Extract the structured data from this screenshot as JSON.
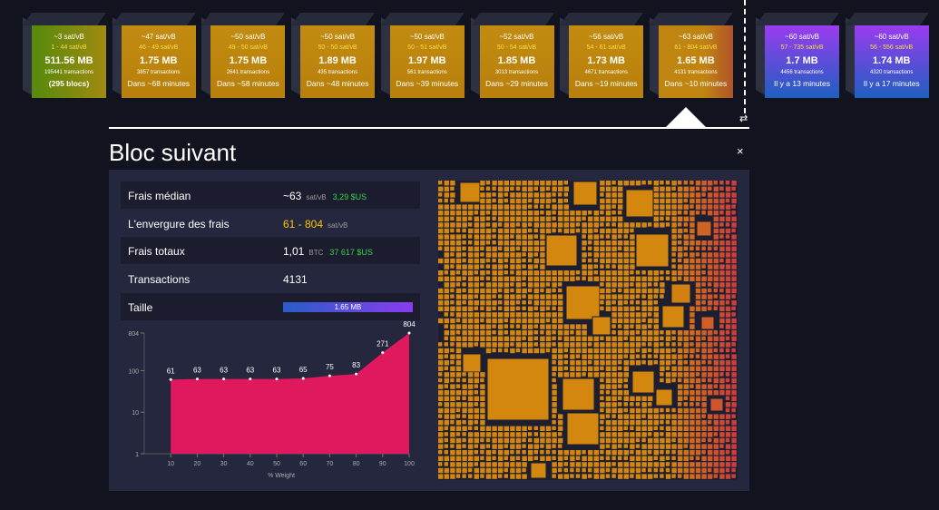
{
  "mempool_blocks": [
    {
      "median_fee": "~3 sat/vB",
      "fee_range": "1 - 44 sat/vB",
      "size": "511.56 MB",
      "transactions": "195441 transactions",
      "eta": "(295 blocs)"
    },
    {
      "median_fee": "~47 sat/vB",
      "fee_range": "46 - 49 sat/vB",
      "size": "1.75 MB",
      "transactions": "3857 transactions",
      "eta": "Dans ~68 minutes"
    },
    {
      "median_fee": "~50 sat/vB",
      "fee_range": "49 - 50 sat/vB",
      "size": "1.75 MB",
      "transactions": "2641 transactions",
      "eta": "Dans ~58 minutes"
    },
    {
      "median_fee": "~50 sat/vB",
      "fee_range": "50 - 50 sat/vB",
      "size": "1.89 MB",
      "transactions": "435 transactions",
      "eta": "Dans ~48 minutes"
    },
    {
      "median_fee": "~50 sat/vB",
      "fee_range": "50 - 51 sat/vB",
      "size": "1.97 MB",
      "transactions": "561 transactions",
      "eta": "Dans ~39 minutes"
    },
    {
      "median_fee": "~52 sat/vB",
      "fee_range": "50 - 54 sat/vB",
      "size": "1.85 MB",
      "transactions": "3013 transactions",
      "eta": "Dans ~29 minutes"
    },
    {
      "median_fee": "~56 sat/vB",
      "fee_range": "54 - 61 sat/vB",
      "size": "1.73 MB",
      "transactions": "4671 transactions",
      "eta": "Dans ~19 minutes"
    },
    {
      "median_fee": "~63 sat/vB",
      "fee_range": "61 - 804 sat/vB",
      "size": "1.65 MB",
      "transactions": "4131 transactions",
      "eta": "Dans ~10 minutes"
    }
  ],
  "mined_blocks": [
    {
      "median_fee": "~60 sat/vB",
      "fee_range": "57 - 735 sat/vB",
      "size": "1.7 MB",
      "transactions": "4456 transactions",
      "eta": "Il y a 13 minutes"
    },
    {
      "median_fee": "~60 sat/vB",
      "fee_range": "56 - 556 sat/vB",
      "size": "1.74 MB",
      "transactions": "4320 transactions",
      "eta": "Il y a 17 minutes"
    }
  ],
  "details": {
    "title": "Bloc suivant",
    "close": "×",
    "rows": [
      {
        "label": "Frais médian",
        "value": "~63",
        "unit": "sat/vB",
        "fiat": "3,29 $US"
      },
      {
        "label": "L'envergure des frais",
        "value": "61 - 804",
        "unit": "sat/vB"
      },
      {
        "label": "Frais totaux",
        "value": "1,01",
        "unit": "BTC",
        "fiat": "37 617 $US"
      },
      {
        "label": "Transactions",
        "value": "4131"
      },
      {
        "label": "Taille",
        "value": "1.65 MB"
      }
    ]
  },
  "chart_data": {
    "type": "area",
    "xlabel": "% Weight",
    "x": [
      10,
      20,
      30,
      40,
      50,
      60,
      70,
      80,
      90,
      100
    ],
    "values": [
      61,
      63,
      63,
      63,
      63,
      65,
      75,
      83,
      271,
      804
    ],
    "color": "#e0195f",
    "xlim": [
      0,
      100
    ],
    "xticks": [
      10,
      20,
      30,
      40,
      50,
      60,
      70,
      80,
      90,
      100
    ],
    "ylim": [
      1,
      804
    ],
    "yticks": [
      1,
      10,
      100,
      804
    ],
    "log_scale": true
  }
}
